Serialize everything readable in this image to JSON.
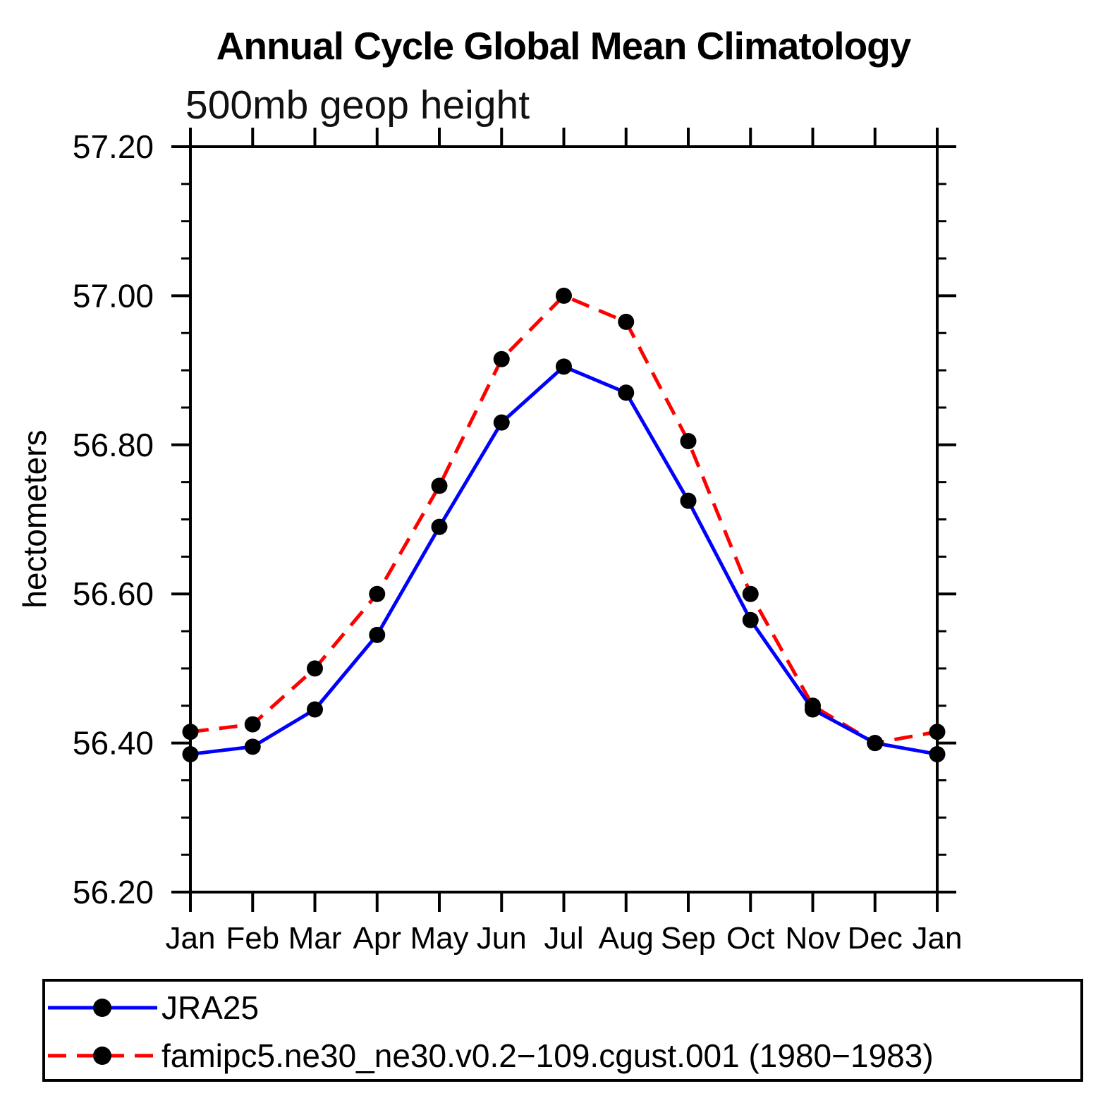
{
  "chart_data": {
    "type": "line",
    "title": "Annual Cycle Global Mean Climatology",
    "subtitle": "500mb geop height",
    "ylabel": "hectometers",
    "categories": [
      "Jan",
      "Feb",
      "Mar",
      "Apr",
      "May",
      "Jun",
      "Jul",
      "Aug",
      "Sep",
      "Oct",
      "Nov",
      "Dec",
      "Jan"
    ],
    "ylim": [
      56.2,
      57.2
    ],
    "y_major_step": 0.2,
    "y_minor_step": 0.05,
    "y_tick_decimals": 2,
    "grid": false,
    "legend_position": "bottom-left-box",
    "axis_color": "#000000",
    "marker": "circle",
    "marker_color": "#000000",
    "series": [
      {
        "name": "JRA25",
        "color": "#0000ff",
        "line_style": "solid",
        "values": [
          56.385,
          56.395,
          56.445,
          56.545,
          56.69,
          56.83,
          56.905,
          56.87,
          56.725,
          56.565,
          56.445,
          56.4,
          56.385
        ]
      },
      {
        "name": "famipc5.ne30_ne30.v0.2−109.cgust.001 (1980−1983)",
        "color": "#ff0000",
        "line_style": "dashed",
        "values": [
          56.415,
          56.425,
          56.5,
          56.6,
          56.745,
          56.915,
          57.0,
          56.965,
          56.805,
          56.6,
          56.45,
          56.4,
          56.415
        ]
      }
    ]
  }
}
